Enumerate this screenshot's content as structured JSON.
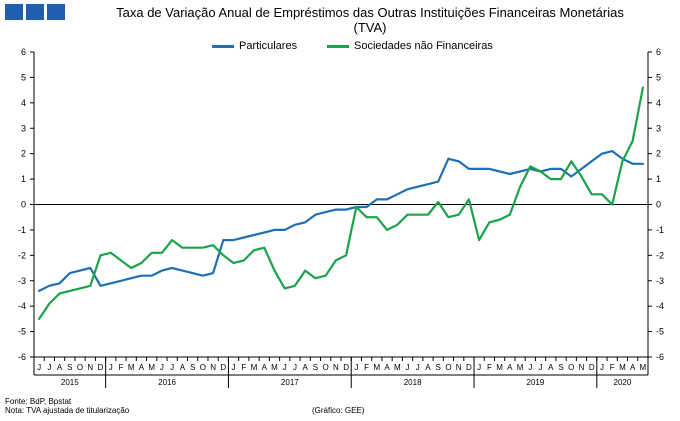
{
  "header": {
    "logo_color": "#1f5fae",
    "title_line1": "Taxa de Variação Anual de Empréstimos das Outras Instituições Financeiras Monetárias",
    "title_line2": "(TVA)"
  },
  "colors": {
    "particulares": "#1f6fb5",
    "sociedades": "#1aa34a",
    "axis": "#000000",
    "grid": "#b0b0b0"
  },
  "footer": {
    "source": "Fonte: BdP, Bpstat",
    "note": "Nota: TVA ajustada de titularização",
    "credit": "(Gráfico: GEE)"
  },
  "chart_data": {
    "type": "line",
    "title": "Taxa de Variação Anual de Empréstimos das Outras Instituições Financeiras Monetárias (TVA)",
    "ylim": [
      -6,
      6
    ],
    "yticks": [
      "6",
      "5",
      "4",
      "3",
      "2",
      "1",
      "0",
      "-1",
      "-2",
      "-3",
      "-4",
      "-5",
      "-6"
    ],
    "grid": false,
    "legend_position": "top",
    "x": [
      "J",
      "J",
      "A",
      "S",
      "O",
      "N",
      "D",
      "J",
      "F",
      "M",
      "A",
      "M",
      "J",
      "J",
      "A",
      "S",
      "O",
      "N",
      "D",
      "J",
      "F",
      "M",
      "A",
      "M",
      "J",
      "J",
      "A",
      "S",
      "O",
      "N",
      "D",
      "J",
      "F",
      "M",
      "A",
      "M",
      "J",
      "J",
      "A",
      "S",
      "O",
      "N",
      "D",
      "J",
      "F",
      "M",
      "A",
      "M",
      "J",
      "J",
      "A",
      "S",
      "O",
      "N",
      "D",
      "J",
      "F",
      "M",
      "A",
      "M"
    ],
    "years": [
      {
        "label": "2015",
        "start": 0,
        "end": 6
      },
      {
        "label": "2016",
        "start": 7,
        "end": 18
      },
      {
        "label": "2017",
        "start": 19,
        "end": 30
      },
      {
        "label": "2018",
        "start": 31,
        "end": 42
      },
      {
        "label": "2019",
        "start": 43,
        "end": 54
      },
      {
        "label": "2020",
        "start": 55,
        "end": 59
      }
    ],
    "series": [
      {
        "name": "Particulares",
        "values": [
          -3.4,
          -3.2,
          -3.1,
          -2.7,
          -2.6,
          -2.5,
          -3.2,
          -3.1,
          -3.0,
          -2.9,
          -2.8,
          -2.8,
          -2.6,
          -2.5,
          -2.6,
          -2.7,
          -2.8,
          -2.7,
          -1.4,
          -1.4,
          -1.3,
          -1.2,
          -1.1,
          -1.0,
          -1.0,
          -0.8,
          -0.7,
          -0.4,
          -0.3,
          -0.2,
          -0.2,
          -0.1,
          -0.1,
          0.2,
          0.2,
          0.4,
          0.6,
          0.7,
          0.8,
          0.9,
          1.8,
          1.7,
          1.4,
          1.4,
          1.4,
          1.3,
          1.2,
          1.3,
          1.4,
          1.3,
          1.4,
          1.4,
          1.1,
          1.4,
          1.7,
          2.0,
          2.1,
          1.8,
          1.6,
          1.6
        ]
      },
      {
        "name": "Sociedades não Financeiras",
        "values": [
          -4.5,
          -3.9,
          -3.5,
          -3.4,
          -3.3,
          -3.2,
          -2.0,
          -1.9,
          -2.2,
          -2.5,
          -2.3,
          -1.9,
          -1.9,
          -1.4,
          -1.7,
          -1.7,
          -1.7,
          -1.6,
          -2.0,
          -2.3,
          -2.2,
          -1.8,
          -1.7,
          -2.6,
          -3.3,
          -3.2,
          -2.6,
          -2.9,
          -2.8,
          -2.2,
          -2.0,
          -0.1,
          -0.5,
          -0.5,
          -1.0,
          -0.8,
          -0.4,
          -0.4,
          -0.4,
          0.1,
          -0.5,
          -0.4,
          0.2,
          -1.4,
          -0.7,
          -0.6,
          -0.4,
          0.7,
          1.5,
          1.3,
          1.0,
          1.0,
          1.7,
          1.1,
          0.4,
          0.4,
          0.0,
          1.7,
          2.5,
          4.6
        ]
      }
    ]
  }
}
